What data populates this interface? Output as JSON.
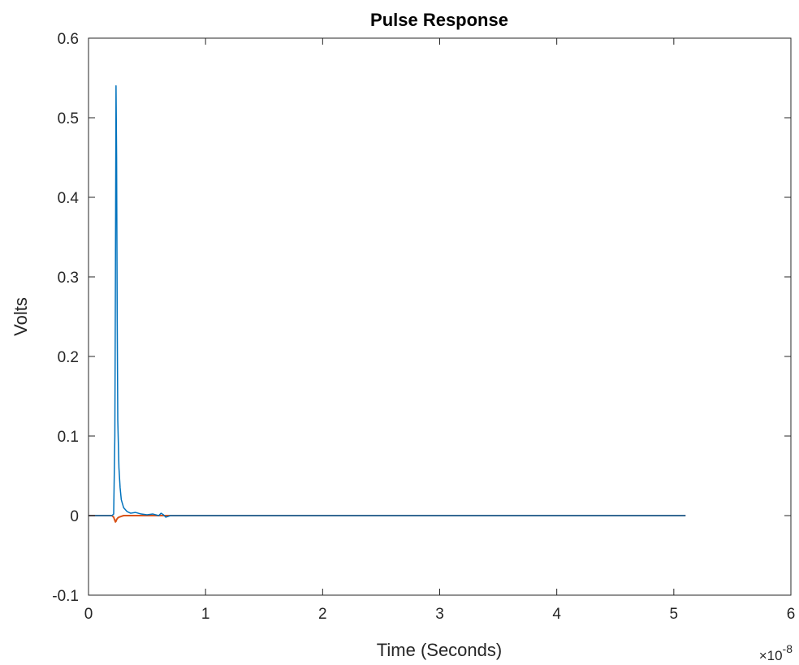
{
  "chart_data": {
    "type": "line",
    "title": "Pulse Response",
    "xlabel": "Time (Seconds)",
    "ylabel": "Volts",
    "x_exponent": {
      "base": "×10",
      "power": "-8"
    },
    "xlim": [
      0,
      6
    ],
    "ylim": [
      -0.1,
      0.6
    ],
    "x_unit_scale": 1e-08,
    "x_ticks": [
      0,
      1,
      2,
      3,
      4,
      5,
      6
    ],
    "x_tick_labels": [
      "0",
      "1",
      "2",
      "3",
      "4",
      "5",
      "6"
    ],
    "y_ticks": [
      -0.1,
      0,
      0.1,
      0.2,
      0.3,
      0.4,
      0.5,
      0.6
    ],
    "y_tick_labels": [
      "-0.1",
      "0",
      "0.1",
      "0.2",
      "0.3",
      "0.4",
      "0.5",
      "0.6"
    ],
    "grid": false,
    "legend": "none",
    "series": [
      {
        "color": "#0072BD",
        "x": [
          0,
          0.15,
          0.2,
          0.215,
          0.225,
          0.23,
          0.235,
          0.24,
          0.245,
          0.25,
          0.26,
          0.27,
          0.28,
          0.3,
          0.33,
          0.36,
          0.4,
          0.45,
          0.5,
          0.55,
          0.6,
          0.62,
          0.64,
          0.66,
          0.7,
          0.8,
          0.9,
          1.0,
          2.0,
          3.0,
          4.0,
          5.1
        ],
        "y": [
          0,
          0,
          0.0,
          0.002,
          0.1,
          0.3,
          0.54,
          0.45,
          0.25,
          0.12,
          0.06,
          0.035,
          0.02,
          0.01,
          0.005,
          0.003,
          0.004,
          0.002,
          0.001,
          0.002,
          0.0,
          0.003,
          0.001,
          -0.002,
          0.0,
          0.0,
          0.0,
          0.0,
          0.0,
          0.0,
          0.0,
          0.0
        ]
      },
      {
        "color": "#D95319",
        "x": [
          0,
          0.15,
          0.2,
          0.215,
          0.225,
          0.23,
          0.235,
          0.24,
          0.25,
          0.26,
          0.28,
          0.3,
          0.35,
          0.4,
          0.5,
          1.0,
          2.0,
          3.0,
          4.0,
          5.1
        ],
        "y": [
          0,
          0,
          0.0,
          -0.002,
          -0.006,
          -0.008,
          -0.007,
          -0.005,
          -0.003,
          -0.002,
          -0.001,
          0.0,
          0.0,
          0.0,
          0.0,
          0.0,
          0.0,
          0.0,
          0.0,
          0.0
        ]
      }
    ]
  }
}
